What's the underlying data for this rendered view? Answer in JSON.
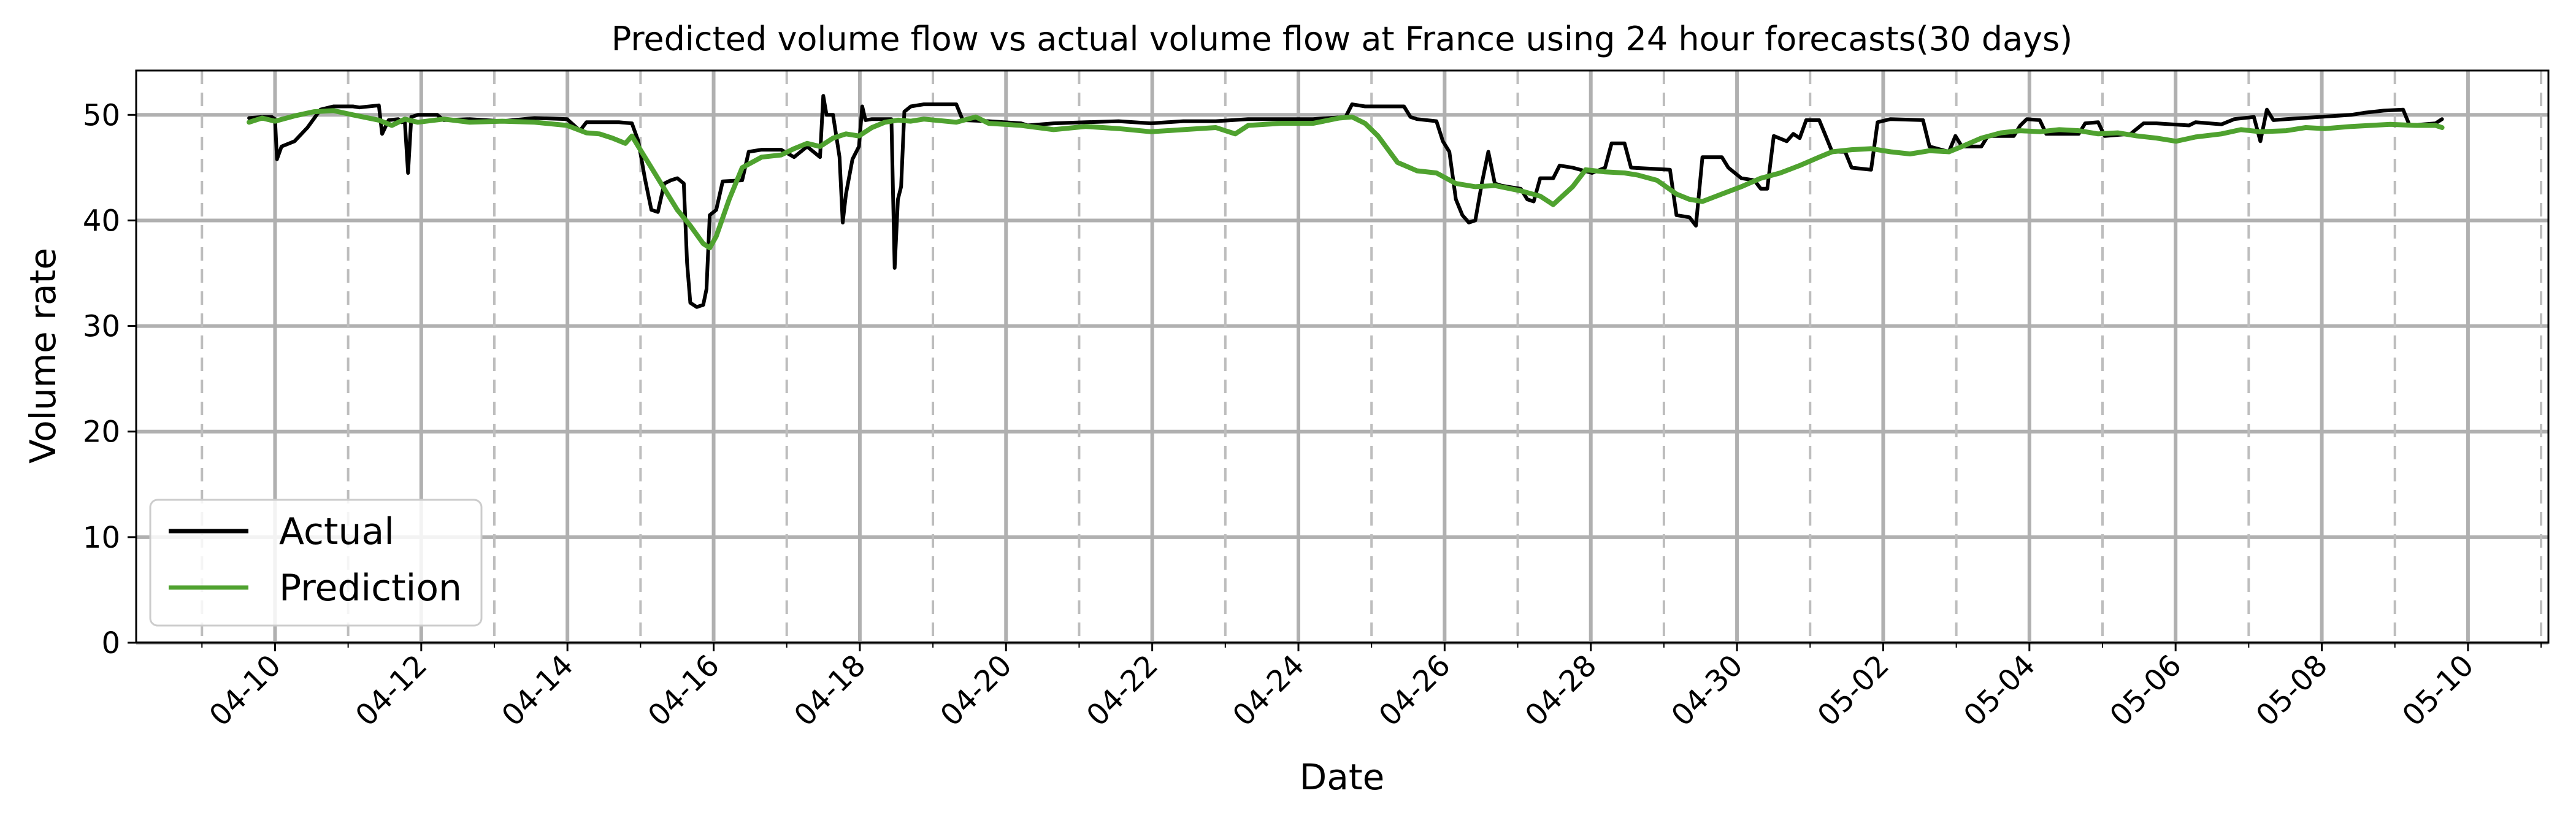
{
  "chart_data": {
    "type": "line",
    "title": "Predicted volume flow vs actual volume flow at France using 24 hour forecasts(30 days)",
    "xlabel": "Date",
    "ylabel": "Volume rate",
    "x_ticks": [
      "04-10",
      "04-12",
      "04-14",
      "04-16",
      "04-18",
      "04-20",
      "04-22",
      "04-24",
      "04-26",
      "04-28",
      "04-30",
      "05-02",
      "05-04",
      "05-06",
      "05-08",
      "05-10"
    ],
    "y_ticks": [
      0,
      10,
      20,
      30,
      40,
      50
    ],
    "ylim": [
      0,
      54.2
    ],
    "xlim_days": [
      -1.9,
      31.1
    ],
    "grid": {
      "major_solid": true,
      "minor_dashed_x": true
    },
    "legend_position": "lower-left",
    "colors": {
      "Actual": "#000000",
      "Prediction": "#4fa22f"
    },
    "series": [
      {
        "name": "Actual",
        "points": [
          [
            -0.4,
            49.7
          ],
          [
            -0.2,
            49.8
          ],
          [
            -0.05,
            49.8
          ],
          [
            0.0,
            49.6
          ],
          [
            0.03,
            45.8
          ],
          [
            0.1,
            47.0
          ],
          [
            0.3,
            47.5
          ],
          [
            0.5,
            48.8
          ],
          [
            0.7,
            50.5
          ],
          [
            0.9,
            50.8
          ],
          [
            1.2,
            50.8
          ],
          [
            1.3,
            50.7
          ],
          [
            1.6,
            50.9
          ],
          [
            1.65,
            48.2
          ],
          [
            1.75,
            49.5
          ],
          [
            1.9,
            49.6
          ],
          [
            1.95,
            49.3
          ],
          [
            2.0,
            49.4
          ],
          [
            2.05,
            44.5
          ],
          [
            2.1,
            49.8
          ],
          [
            2.2,
            50.0
          ],
          [
            2.5,
            50.0
          ],
          [
            2.6,
            49.5
          ],
          [
            3.0,
            49.6
          ],
          [
            3.5,
            49.4
          ],
          [
            4.0,
            49.7
          ],
          [
            4.5,
            49.6
          ],
          [
            4.7,
            48.5
          ],
          [
            4.8,
            49.3
          ],
          [
            5.3,
            49.3
          ],
          [
            5.5,
            49.2
          ],
          [
            5.6,
            47.5
          ],
          [
            5.7,
            44.0
          ],
          [
            5.8,
            41.0
          ],
          [
            5.9,
            40.8
          ],
          [
            6.0,
            43.5
          ],
          [
            6.1,
            43.8
          ],
          [
            6.2,
            44.0
          ],
          [
            6.3,
            43.5
          ],
          [
            6.35,
            36.0
          ],
          [
            6.4,
            32.2
          ],
          [
            6.5,
            31.8
          ],
          [
            6.6,
            32.0
          ],
          [
            6.65,
            33.5
          ],
          [
            6.7,
            40.5
          ],
          [
            6.8,
            41.0
          ],
          [
            6.9,
            43.7
          ],
          [
            7.2,
            43.8
          ],
          [
            7.3,
            46.5
          ],
          [
            7.5,
            46.7
          ],
          [
            7.8,
            46.7
          ],
          [
            8.0,
            46.0
          ],
          [
            8.2,
            47.0
          ],
          [
            8.4,
            46.0
          ],
          [
            8.45,
            51.8
          ],
          [
            8.5,
            50.0
          ],
          [
            8.6,
            50.0
          ],
          [
            8.7,
            46.0
          ],
          [
            8.75,
            39.8
          ],
          [
            8.8,
            42.5
          ],
          [
            8.9,
            45.8
          ],
          [
            9.0,
            47.0
          ],
          [
            9.05,
            50.8
          ],
          [
            9.1,
            49.5
          ],
          [
            9.2,
            49.6
          ],
          [
            9.3,
            49.6
          ],
          [
            9.5,
            49.6
          ],
          [
            9.55,
            35.5
          ],
          [
            9.6,
            42.0
          ],
          [
            9.65,
            43.2
          ],
          [
            9.7,
            50.3
          ],
          [
            9.8,
            50.8
          ],
          [
            10.0,
            51.0
          ],
          [
            10.3,
            51.0
          ],
          [
            10.5,
            51.0
          ],
          [
            10.6,
            49.5
          ],
          [
            11.0,
            49.4
          ],
          [
            11.5,
            49.2
          ],
          [
            11.6,
            49.0
          ],
          [
            12.0,
            49.2
          ],
          [
            12.5,
            49.3
          ],
          [
            13.0,
            49.4
          ],
          [
            13.5,
            49.2
          ],
          [
            14.0,
            49.4
          ],
          [
            14.5,
            49.4
          ],
          [
            15.0,
            49.6
          ],
          [
            15.5,
            49.6
          ],
          [
            16.0,
            49.6
          ],
          [
            16.5,
            49.8
          ],
          [
            16.6,
            51.0
          ],
          [
            16.8,
            50.8
          ],
          [
            17.0,
            50.8
          ],
          [
            17.4,
            50.8
          ],
          [
            17.5,
            49.8
          ],
          [
            17.6,
            49.6
          ],
          [
            17.9,
            49.4
          ],
          [
            18.0,
            47.5
          ],
          [
            18.1,
            46.5
          ],
          [
            18.2,
            42.0
          ],
          [
            18.3,
            40.5
          ],
          [
            18.4,
            39.8
          ],
          [
            18.5,
            40.0
          ],
          [
            18.6,
            43.5
          ],
          [
            18.7,
            46.5
          ],
          [
            18.8,
            43.5
          ],
          [
            18.9,
            43.3
          ],
          [
            19.0,
            43.2
          ],
          [
            19.2,
            43.0
          ],
          [
            19.3,
            42.0
          ],
          [
            19.4,
            41.8
          ],
          [
            19.5,
            44.0
          ],
          [
            19.7,
            44.0
          ],
          [
            19.8,
            45.2
          ],
          [
            20.0,
            45.0
          ],
          [
            20.3,
            44.5
          ],
          [
            20.5,
            45.0
          ],
          [
            20.6,
            47.3
          ],
          [
            20.8,
            47.3
          ],
          [
            20.9,
            45.0
          ],
          [
            21.5,
            44.8
          ],
          [
            21.6,
            40.5
          ],
          [
            21.8,
            40.3
          ],
          [
            21.9,
            39.5
          ],
          [
            22.0,
            46.0
          ],
          [
            22.3,
            46.0
          ],
          [
            22.4,
            45.0
          ],
          [
            22.6,
            44.0
          ],
          [
            22.8,
            43.8
          ],
          [
            22.9,
            43.0
          ],
          [
            23.0,
            43.0
          ],
          [
            23.1,
            48.0
          ],
          [
            23.3,
            47.5
          ],
          [
            23.4,
            48.2
          ],
          [
            23.5,
            47.8
          ],
          [
            23.6,
            49.5
          ],
          [
            23.8,
            49.5
          ],
          [
            23.9,
            48.0
          ],
          [
            24.0,
            46.5
          ],
          [
            24.2,
            46.5
          ],
          [
            24.3,
            45.0
          ],
          [
            24.6,
            44.8
          ],
          [
            24.7,
            49.3
          ],
          [
            24.9,
            49.6
          ],
          [
            25.4,
            49.5
          ],
          [
            25.5,
            47.0
          ],
          [
            25.8,
            46.5
          ],
          [
            25.9,
            48.0
          ],
          [
            26.0,
            47.0
          ],
          [
            26.3,
            47.0
          ],
          [
            26.4,
            48.0
          ],
          [
            26.8,
            48.0
          ],
          [
            26.9,
            49.0
          ],
          [
            27.0,
            49.6
          ],
          [
            27.2,
            49.5
          ],
          [
            27.3,
            48.2
          ],
          [
            27.8,
            48.2
          ],
          [
            27.9,
            49.2
          ],
          [
            28.1,
            49.3
          ],
          [
            28.2,
            48.0
          ],
          [
            28.6,
            48.2
          ],
          [
            28.8,
            49.2
          ],
          [
            29.0,
            49.2
          ],
          [
            29.5,
            49.0
          ],
          [
            29.6,
            49.3
          ],
          [
            30.0,
            49.1
          ],
          [
            30.2,
            49.6
          ],
          [
            30.5,
            49.8
          ],
          [
            30.6,
            47.5
          ],
          [
            30.7,
            50.5
          ],
          [
            30.8,
            49.5
          ],
          [
            31.0,
            49.6
          ],
          [
            31.5,
            49.8
          ],
          [
            32.0,
            50.0
          ],
          [
            32.2,
            50.2
          ],
          [
            32.5,
            50.4
          ],
          [
            32.8,
            50.5
          ],
          [
            32.9,
            49.0
          ],
          [
            33.3,
            49.2
          ],
          [
            33.4,
            49.6
          ]
        ]
      },
      {
        "name": "Prediction",
        "points": [
          [
            -0.4,
            49.3
          ],
          [
            -0.2,
            49.7
          ],
          [
            0.0,
            49.4
          ],
          [
            0.3,
            49.9
          ],
          [
            0.6,
            50.3
          ],
          [
            0.9,
            50.4
          ],
          [
            1.2,
            50.0
          ],
          [
            1.6,
            49.5
          ],
          [
            1.8,
            49.0
          ],
          [
            2.0,
            49.6
          ],
          [
            2.2,
            49.3
          ],
          [
            2.6,
            49.6
          ],
          [
            3.0,
            49.3
          ],
          [
            3.5,
            49.4
          ],
          [
            4.0,
            49.3
          ],
          [
            4.5,
            49.0
          ],
          [
            4.8,
            48.3
          ],
          [
            5.0,
            48.2
          ],
          [
            5.2,
            47.8
          ],
          [
            5.4,
            47.3
          ],
          [
            5.5,
            48.0
          ],
          [
            5.6,
            47.0
          ],
          [
            5.8,
            45.0
          ],
          [
            6.0,
            43.0
          ],
          [
            6.2,
            41.0
          ],
          [
            6.4,
            39.5
          ],
          [
            6.6,
            37.8
          ],
          [
            6.7,
            37.4
          ],
          [
            6.8,
            38.5
          ],
          [
            7.0,
            42.0
          ],
          [
            7.2,
            45.0
          ],
          [
            7.5,
            46.0
          ],
          [
            7.8,
            46.2
          ],
          [
            8.0,
            46.8
          ],
          [
            8.2,
            47.3
          ],
          [
            8.4,
            47.0
          ],
          [
            8.6,
            47.8
          ],
          [
            8.8,
            48.2
          ],
          [
            9.0,
            48.0
          ],
          [
            9.2,
            48.8
          ],
          [
            9.4,
            49.3
          ],
          [
            9.6,
            49.5
          ],
          [
            9.8,
            49.4
          ],
          [
            10.0,
            49.6
          ],
          [
            10.5,
            49.3
          ],
          [
            10.8,
            49.8
          ],
          [
            11.0,
            49.2
          ],
          [
            11.5,
            49.0
          ],
          [
            12.0,
            48.6
          ],
          [
            12.5,
            48.9
          ],
          [
            13.0,
            48.7
          ],
          [
            13.5,
            48.4
          ],
          [
            14.0,
            48.6
          ],
          [
            14.5,
            48.8
          ],
          [
            14.8,
            48.2
          ],
          [
            15.0,
            49.0
          ],
          [
            15.5,
            49.2
          ],
          [
            16.0,
            49.2
          ],
          [
            16.4,
            49.7
          ],
          [
            16.6,
            49.8
          ],
          [
            16.8,
            49.2
          ],
          [
            17.0,
            48.0
          ],
          [
            17.3,
            45.5
          ],
          [
            17.6,
            44.7
          ],
          [
            17.9,
            44.5
          ],
          [
            18.2,
            43.5
          ],
          [
            18.5,
            43.2
          ],
          [
            18.8,
            43.3
          ],
          [
            19.2,
            42.8
          ],
          [
            19.5,
            42.3
          ],
          [
            19.7,
            41.5
          ],
          [
            20.0,
            43.2
          ],
          [
            20.2,
            44.8
          ],
          [
            20.5,
            44.6
          ],
          [
            20.8,
            44.5
          ],
          [
            21.0,
            44.3
          ],
          [
            21.3,
            43.8
          ],
          [
            21.6,
            42.5
          ],
          [
            21.8,
            42.0
          ],
          [
            22.0,
            41.8
          ],
          [
            22.3,
            42.5
          ],
          [
            22.6,
            43.2
          ],
          [
            22.9,
            44.0
          ],
          [
            23.2,
            44.5
          ],
          [
            23.5,
            45.2
          ],
          [
            23.8,
            46.0
          ],
          [
            24.0,
            46.5
          ],
          [
            24.3,
            46.7
          ],
          [
            24.6,
            46.8
          ],
          [
            24.9,
            46.5
          ],
          [
            25.2,
            46.3
          ],
          [
            25.5,
            46.6
          ],
          [
            25.8,
            46.5
          ],
          [
            26.0,
            47.0
          ],
          [
            26.3,
            47.8
          ],
          [
            26.6,
            48.3
          ],
          [
            26.9,
            48.5
          ],
          [
            27.2,
            48.4
          ],
          [
            27.5,
            48.6
          ],
          [
            27.8,
            48.5
          ],
          [
            28.1,
            48.2
          ],
          [
            28.4,
            48.3
          ],
          [
            28.7,
            48.0
          ],
          [
            29.0,
            47.8
          ],
          [
            29.3,
            47.5
          ],
          [
            29.6,
            47.9
          ],
          [
            30.0,
            48.2
          ],
          [
            30.3,
            48.6
          ],
          [
            30.6,
            48.4
          ],
          [
            31.0,
            48.5
          ],
          [
            31.3,
            48.8
          ],
          [
            31.6,
            48.7
          ],
          [
            32.0,
            48.9
          ],
          [
            32.3,
            49.0
          ],
          [
            32.6,
            49.1
          ],
          [
            33.0,
            49.0
          ],
          [
            33.3,
            49.0
          ],
          [
            33.4,
            48.8
          ]
        ]
      }
    ]
  }
}
